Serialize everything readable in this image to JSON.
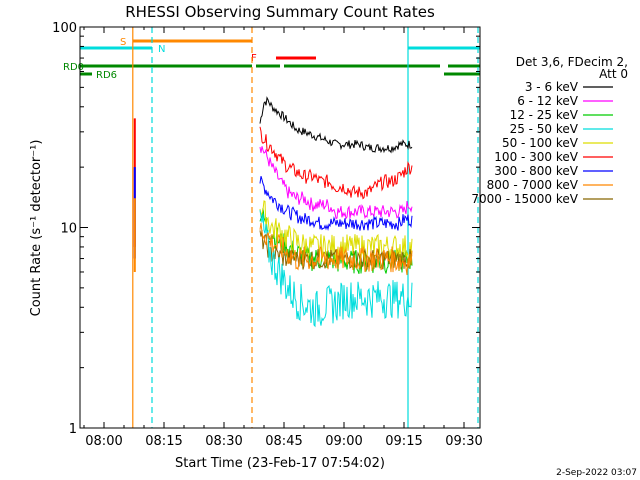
{
  "chart_data": {
    "type": "line",
    "title": "RHESSI Observing Summary Count Rates",
    "xlabel": "Start Time (23-Feb-17 07:54:02)",
    "ylabel": "Count Rate (s⁻¹ detector⁻¹)",
    "x_unit": "minutes after 07:54:02",
    "xlim": [
      0,
      100
    ],
    "yscale": "log",
    "ylim": [
      1,
      100
    ],
    "xticks": [
      {
        "value": 6,
        "label": "08:00"
      },
      {
        "value": 21,
        "label": "08:15"
      },
      {
        "value": 36,
        "label": "08:30"
      },
      {
        "value": 51,
        "label": "08:45"
      },
      {
        "value": 66,
        "label": "09:00"
      },
      {
        "value": 81,
        "label": "09:15"
      },
      {
        "value": 96,
        "label": "09:30"
      }
    ],
    "yticks": [
      {
        "value": 1,
        "label": "1"
      },
      {
        "value": 10,
        "label": "10"
      },
      {
        "value": 100,
        "label": "100"
      }
    ],
    "legend": {
      "position": "right",
      "header": [
        "Det 3,6, FDecim 2,",
        "Att 0"
      ],
      "entries": [
        {
          "name": "3 - 6 keV",
          "color": "#000000"
        },
        {
          "name": "6 - 12 keV",
          "color": "#ff00ff"
        },
        {
          "name": "12 - 25 keV",
          "color": "#00cc00"
        },
        {
          "name": "25 - 50 keV",
          "color": "#00dddd"
        },
        {
          "name": "50 - 100 keV",
          "color": "#dddd00"
        },
        {
          "name": "100 - 300 keV",
          "color": "#ff0000"
        },
        {
          "name": "300 - 800 keV",
          "color": "#0000ff"
        },
        {
          "name": "800 - 7000 keV",
          "color": "#ff8800"
        },
        {
          "name": "7000 - 15000 keV",
          "color": "#886600"
        }
      ]
    },
    "series_time": [
      45,
      46,
      47,
      48,
      50,
      52,
      54,
      56,
      58,
      60,
      62,
      64,
      66,
      68,
      70,
      72,
      74,
      76,
      78,
      80,
      81,
      82,
      83
    ],
    "series": [
      {
        "name": "3 - 6 keV",
        "color": "#000000",
        "values": [
          33,
          42,
          43,
          40,
          37,
          34,
          31,
          30,
          29,
          28,
          27,
          26,
          26,
          26,
          26,
          25,
          25,
          25,
          25,
          26,
          26,
          26,
          26
        ]
      },
      {
        "name": "6 - 12 keV",
        "color": "#ff00ff",
        "values": [
          26,
          24,
          22,
          20,
          17,
          15,
          14,
          14,
          13,
          13,
          13,
          12,
          12,
          12,
          12,
          12,
          12,
          12,
          12,
          12,
          12,
          13,
          13
        ]
      },
      {
        "name": "12 - 25 keV",
        "color": "#00cc00",
        "values": [
          12,
          11,
          10,
          9.5,
          8.5,
          8,
          7.5,
          7.2,
          7,
          7,
          7,
          6.8,
          6.8,
          6.8,
          6.8,
          6.8,
          6.8,
          6.8,
          6.8,
          6.8,
          6.8,
          7,
          7
        ]
      },
      {
        "name": "25 - 50 keV",
        "color": "#00dddd",
        "values": [
          11,
          9.5,
          8,
          7,
          6,
          5,
          4.5,
          4.2,
          4,
          4,
          4.2,
          4.2,
          4.5,
          4.5,
          4.5,
          4.5,
          4.5,
          4.5,
          4.5,
          4.5,
          4.5,
          4.5,
          4.5
        ]
      },
      {
        "name": "50 - 100 keV",
        "color": "#dddd00",
        "values": [
          13,
          12,
          11,
          10,
          9.5,
          9,
          8.5,
          8.2,
          8,
          8,
          8,
          8,
          8,
          8,
          8,
          8,
          8,
          8,
          8,
          8,
          8,
          8,
          8
        ]
      },
      {
        "name": "100 - 300 keV",
        "color": "#ff0000",
        "values": [
          30,
          28,
          26,
          25,
          22,
          20,
          19,
          18,
          18,
          17,
          17,
          16,
          16,
          15,
          15,
          15,
          16,
          17,
          17,
          18,
          19,
          20,
          20
        ]
      },
      {
        "name": "300 - 800 keV",
        "color": "#0000ff",
        "values": [
          17,
          16,
          15,
          14,
          13,
          12,
          11.5,
          11,
          11,
          10.5,
          10.5,
          10.5,
          10.5,
          10.5,
          10.5,
          10.5,
          10.5,
          10.5,
          10.5,
          10.5,
          11,
          11,
          11
        ]
      },
      {
        "name": "800 - 7000 keV",
        "color": "#ff8800",
        "values": [
          10,
          9.5,
          9,
          8.5,
          8,
          7.5,
          7,
          7,
          7,
          7,
          7,
          7,
          7,
          7,
          7,
          7,
          7,
          7,
          7,
          6.8,
          6.8,
          6.8,
          6.8
        ]
      },
      {
        "name": "7000 - 15000 keV",
        "color": "#886600",
        "values": [
          9,
          8.5,
          8,
          7.5,
          7.2,
          7,
          7,
          7,
          7,
          7,
          7,
          7,
          7,
          7,
          7,
          7,
          7,
          7,
          7,
          7,
          7,
          7,
          7
        ]
      }
    ],
    "early_spike": {
      "time": 13.2,
      "values": [
        {
          "color": "#ff0000",
          "low": 8,
          "high": 35
        },
        {
          "color": "#0000ff",
          "low": 7,
          "high": 20
        },
        {
          "color": "#ff8800",
          "low": 6,
          "high": 14
        }
      ]
    },
    "flag_bars": [
      {
        "label": "S",
        "label_color": "#ff8800",
        "color": "#ff8800",
        "segments": [
          [
            13.2,
            43
          ]
        ],
        "level": 1
      },
      {
        "label": "N",
        "label_color": "#00dddd",
        "color": "#00dddd",
        "segments": [
          [
            0,
            18
          ],
          [
            82,
            100
          ]
        ],
        "level": 2
      },
      {
        "label": "F",
        "label_color": "#ff0000",
        "color": "#ff0000",
        "segments": [
          [
            49,
            59
          ]
        ],
        "level": 3
      },
      {
        "label": "RD0",
        "label_color": "#008800",
        "color": "#008800",
        "segments": [
          [
            0,
            43
          ],
          [
            44,
            50
          ],
          [
            51,
            90
          ],
          [
            92,
            100
          ]
        ],
        "level": 4
      },
      {
        "label": "RD6",
        "label_color": "#008800",
        "color": "#008800",
        "segments": [
          [
            0,
            3
          ],
          [
            91,
            100
          ]
        ],
        "level": 5
      }
    ],
    "vlines": [
      {
        "x": 13.2,
        "color": "#ff8800",
        "style": "solid"
      },
      {
        "x": 18,
        "color": "#00dddd",
        "style": "dashed"
      },
      {
        "x": 43,
        "color": "#ff8800",
        "style": "dashed"
      },
      {
        "x": 82,
        "color": "#00dddd",
        "style": "solid"
      },
      {
        "x": 100,
        "color": "#00dddd",
        "style": "dashed"
      }
    ],
    "footer": "2-Sep-2022 03:07"
  }
}
